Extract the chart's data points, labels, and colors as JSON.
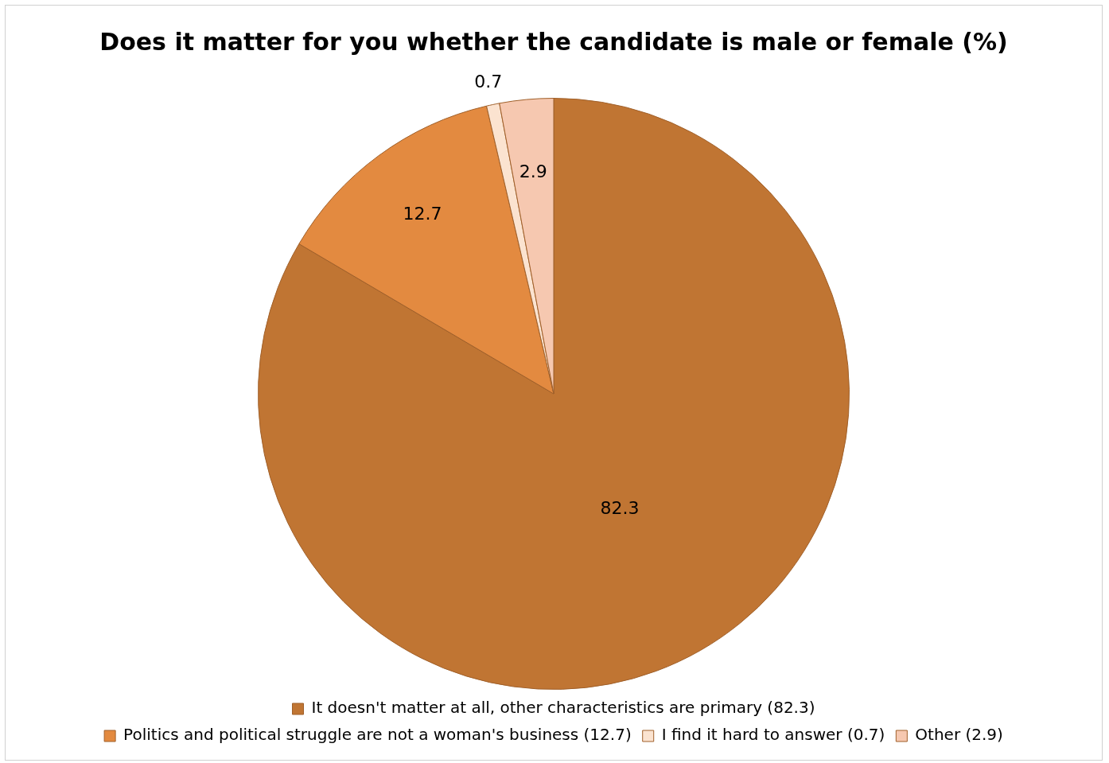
{
  "chart_data": {
    "type": "pie",
    "title": "Does it matter for you whether the candidate is male or female (%)",
    "categories": [
      "It doesn't matter at all, other characteristics are primary (82.3)",
      "Politics and political struggle are not a woman's business (12.7)",
      "I find it hard to answer (0.7)",
      "Other (2.9)"
    ],
    "values": [
      82.3,
      12.7,
      0.7,
      2.9
    ],
    "colors": [
      "#c07533",
      "#e38a40",
      "#fbe3d0",
      "#f6c8b0"
    ],
    "data_labels": true,
    "legend": "bottom"
  }
}
